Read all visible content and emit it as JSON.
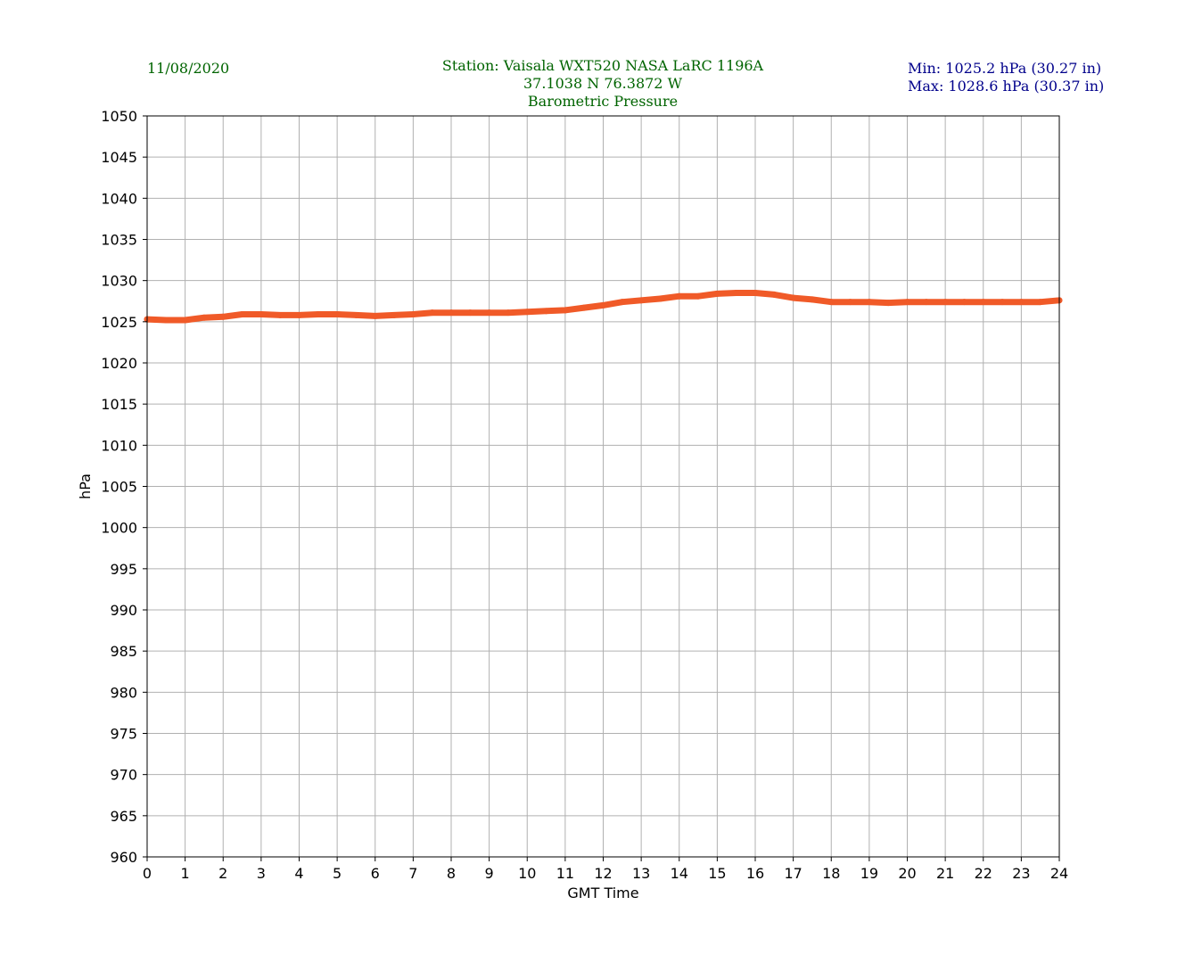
{
  "header": {
    "date": "11/08/2020",
    "station_line": "Station:  Vaisala WXT520  NASA LaRC 1196A",
    "coords_line": "37.1038 N 76.3872 W",
    "subtitle": "Barometric Pressure",
    "min_line": "Min: 1025.2 hPa (30.27 in)",
    "max_line": "Max: 1028.6 hPa (30.37 in)"
  },
  "colors": {
    "header_text": "#006400",
    "minmax_text": "#00008b",
    "series": "#f05a28",
    "grid": "#b0b0b0"
  },
  "chart_data": {
    "type": "line",
    "title": "Barometric Pressure",
    "xlabel": "GMT Time",
    "ylabel": "hPa",
    "xlim": [
      0,
      24
    ],
    "ylim": [
      960,
      1050
    ],
    "xticks": [
      0,
      1,
      2,
      3,
      4,
      5,
      6,
      7,
      8,
      9,
      10,
      11,
      12,
      13,
      14,
      15,
      16,
      17,
      18,
      19,
      20,
      21,
      22,
      23,
      24
    ],
    "yticks": [
      960,
      965,
      970,
      975,
      980,
      985,
      990,
      995,
      1000,
      1005,
      1010,
      1015,
      1020,
      1025,
      1030,
      1035,
      1040,
      1045,
      1050
    ],
    "grid": true,
    "series": [
      {
        "x": [
          0,
          0.5,
          1,
          1.5,
          2,
          2.5,
          3,
          3.5,
          4,
          4.5,
          5,
          5.5,
          6,
          6.5,
          7,
          7.5,
          8,
          8.5,
          9,
          9.5,
          10,
          10.5,
          11,
          11.5,
          12,
          12.5,
          13,
          13.5,
          14,
          14.5,
          15,
          15.5,
          16,
          16.5,
          17,
          17.5,
          18,
          18.5,
          19,
          19.5,
          20,
          20.5,
          21,
          21.5,
          22,
          22.5,
          23,
          23.5,
          24
        ],
        "y": [
          1025.3,
          1025.2,
          1025.2,
          1025.5,
          1025.6,
          1025.9,
          1025.9,
          1025.8,
          1025.8,
          1025.9,
          1025.9,
          1025.8,
          1025.7,
          1025.8,
          1025.9,
          1026.1,
          1026.1,
          1026.1,
          1026.1,
          1026.1,
          1026.2,
          1026.3,
          1026.4,
          1026.7,
          1027.0,
          1027.4,
          1027.6,
          1027.8,
          1028.1,
          1028.1,
          1028.4,
          1028.5,
          1028.5,
          1028.3,
          1027.9,
          1027.7,
          1027.4,
          1027.4,
          1027.4,
          1027.3,
          1027.4,
          1027.4,
          1027.4,
          1027.4,
          1027.4,
          1027.4,
          1027.4,
          1027.4,
          1027.6
        ]
      }
    ]
  }
}
